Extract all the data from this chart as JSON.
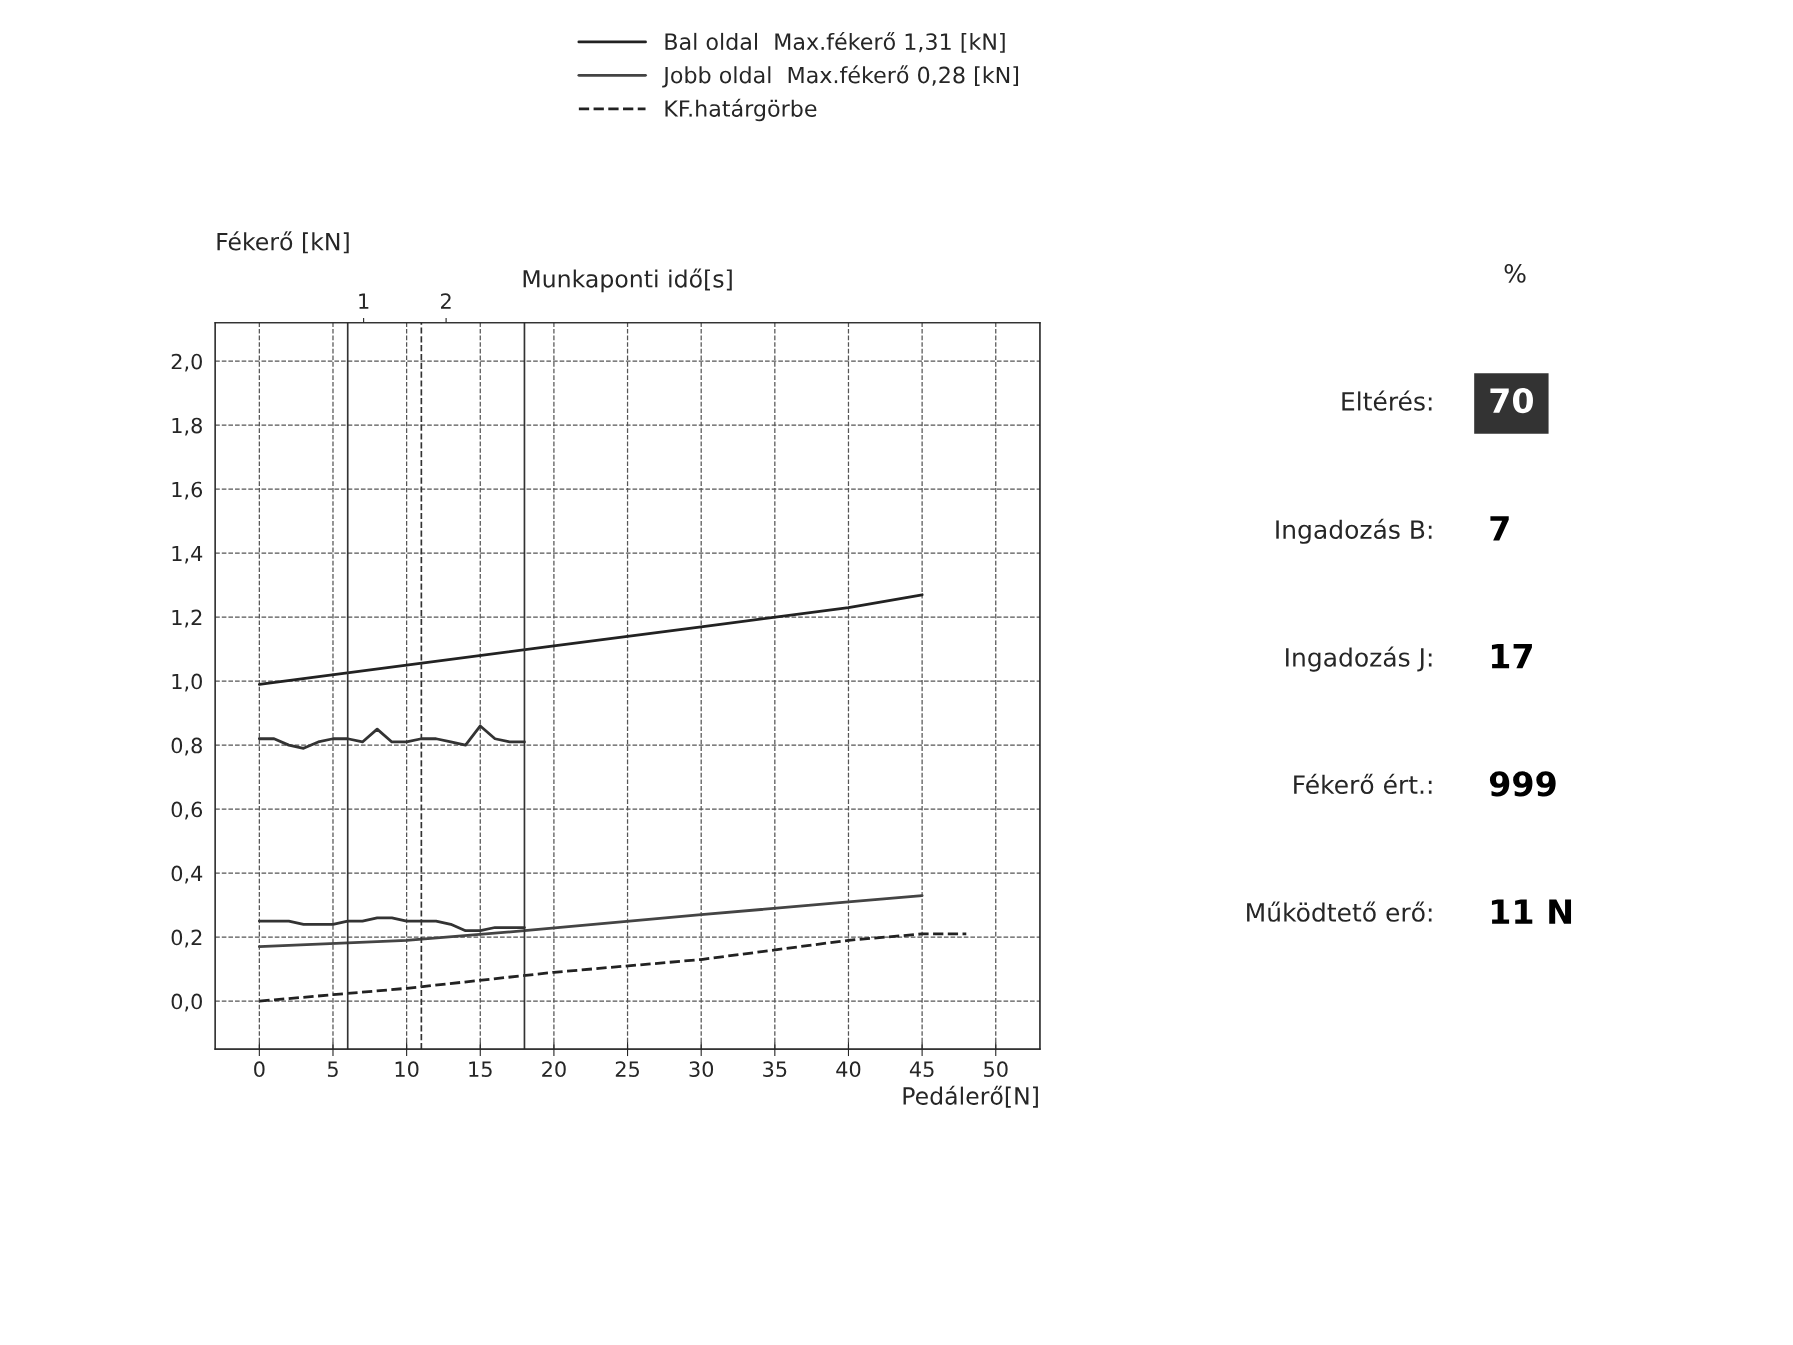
{
  "chart_data": {
    "type": "line",
    "xlabel": "Pedálerő[N]",
    "ylabel": "Fékerő [kN]",
    "x2label": "Munkaponti idő[s]",
    "xlim": [
      -3,
      53
    ],
    "xticks": [
      0,
      5,
      10,
      15,
      20,
      25,
      30,
      35,
      40,
      45,
      50
    ],
    "ylim": [
      -0.15,
      2.12
    ],
    "yticks": [
      {
        "value": 0.0,
        "label": "0,0"
      },
      {
        "value": 0.2,
        "label": "0,2"
      },
      {
        "value": 0.4,
        "label": "0,4"
      },
      {
        "value": 0.6,
        "label": "0,6"
      },
      {
        "value": 0.8,
        "label": "0,8"
      },
      {
        "value": 1.0,
        "label": "1,0"
      },
      {
        "value": 1.2,
        "label": "1,2"
      },
      {
        "value": 1.4,
        "label": "1,4"
      },
      {
        "value": 1.6,
        "label": "1,6"
      },
      {
        "value": 1.8,
        "label": "1,8"
      },
      {
        "value": 2.0,
        "label": "2,0"
      }
    ],
    "x2lim": [
      -0.8,
      9.2
    ],
    "x2ticks": [
      1,
      2
    ],
    "grid": true,
    "legend": "top right",
    "marker": "none",
    "series": [
      {
        "name": "Bal oldal  Max.fékerő 1,31 [kN]",
        "color": "#222222",
        "line_style": "solid",
        "x": [
          0,
          10,
          20,
          30,
          40,
          45
        ],
        "values": [
          0.99,
          1.05,
          1.11,
          1.17,
          1.23,
          1.27
        ]
      },
      {
        "name": "Jobb oldal  Max.fékerő 0,28 [kN]",
        "color": "#444444",
        "line_style": "solid",
        "x": [
          0,
          10,
          18,
          30,
          40,
          45
        ],
        "values": [
          0.17,
          0.19,
          0.22,
          0.27,
          0.31,
          0.33
        ]
      },
      {
        "name": "KF.határgörbe",
        "color": "#222222",
        "line_style": "dashed",
        "x": [
          0,
          5,
          10,
          20,
          30,
          40,
          45,
          48
        ],
        "values": [
          0.0,
          0.02,
          0.04,
          0.09,
          0.13,
          0.19,
          0.21,
          0.21
        ]
      },
      {
        "color": "#333333",
        "line_style": "solid",
        "x": [
          0,
          1,
          2,
          3,
          4,
          5,
          6,
          7,
          8,
          9,
          10,
          11,
          12,
          13,
          14,
          15,
          16,
          17,
          18
        ],
        "values": [
          0.82,
          0.82,
          0.8,
          0.79,
          0.81,
          0.82,
          0.82,
          0.81,
          0.85,
          0.81,
          0.81,
          0.82,
          0.82,
          0.81,
          0.8,
          0.86,
          0.82,
          0.81,
          0.81
        ]
      },
      {
        "color": "#333333",
        "line_style": "solid",
        "x": [
          0,
          1,
          2,
          3,
          4,
          5,
          6,
          7,
          8,
          9,
          10,
          11,
          12,
          13,
          14,
          15,
          16,
          17,
          18
        ],
        "values": [
          0.25,
          0.25,
          0.25,
          0.24,
          0.24,
          0.24,
          0.25,
          0.25,
          0.26,
          0.26,
          0.25,
          0.25,
          0.25,
          0.24,
          0.22,
          0.22,
          0.23,
          0.23,
          0.23
        ]
      }
    ],
    "ref_lines": [
      {
        "axis": "x",
        "value": 6,
        "line_style": "solid",
        "color": "#333333"
      },
      {
        "axis": "x",
        "value": 11,
        "line_style": "dashed",
        "color": "#333333"
      },
      {
        "axis": "x",
        "value": 18,
        "line_style": "solid",
        "color": "#333333"
      }
    ],
    "annotations": [
      "%",
      "Eltérés:",
      "70",
      "Ingadozás B:",
      "7",
      "Ingadozás J:",
      "17",
      "Fékerő ért.:",
      "999",
      "Működtető erő:",
      "11 N"
    ]
  }
}
